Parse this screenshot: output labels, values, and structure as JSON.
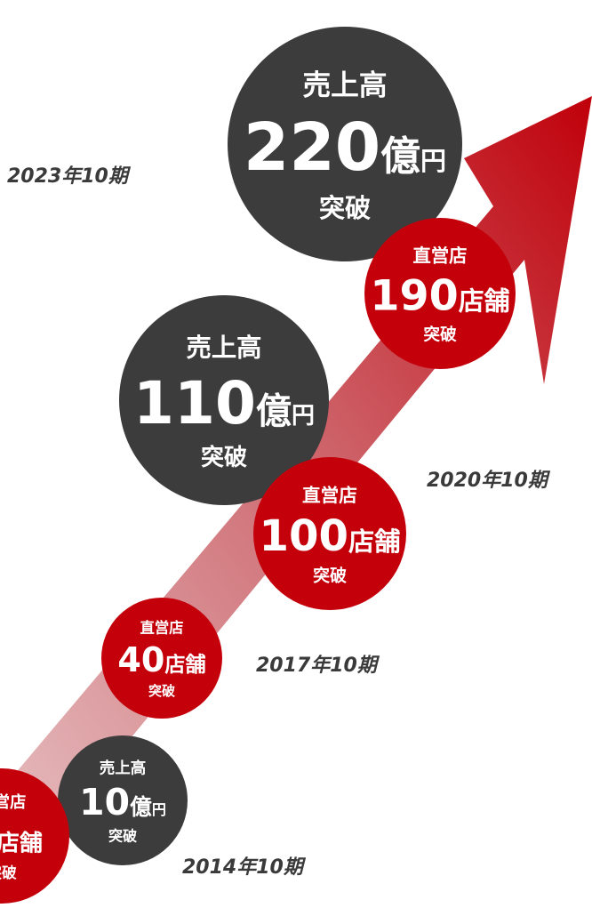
{
  "periods": [
    "2023年10期",
    "2020年10期",
    "2017年10期",
    "2014年10期"
  ],
  "circles": [
    {
      "kind": "sales",
      "head": "売上高",
      "number": "220",
      "unit": "億",
      "sub_unit": "円",
      "foot": "突破"
    },
    {
      "kind": "stores",
      "head": "直営店",
      "number": "190",
      "unit": "店舗",
      "foot": "突破"
    },
    {
      "kind": "sales",
      "head": "売上高",
      "number": "110",
      "unit": "億",
      "sub_unit": "円",
      "foot": "突破"
    },
    {
      "kind": "stores",
      "head": "直営店",
      "number": "100",
      "unit": "店舗",
      "foot": "突破"
    },
    {
      "kind": "stores",
      "head": "直営店",
      "number": "40",
      "unit": "店舗",
      "foot": "突破"
    },
    {
      "kind": "sales",
      "head": "売上高",
      "number": "10",
      "unit": "億",
      "sub_unit": "円",
      "foot": "突破"
    },
    {
      "kind": "stores",
      "head": "直営店",
      "unit": "店舗",
      "foot": "突破"
    }
  ]
}
